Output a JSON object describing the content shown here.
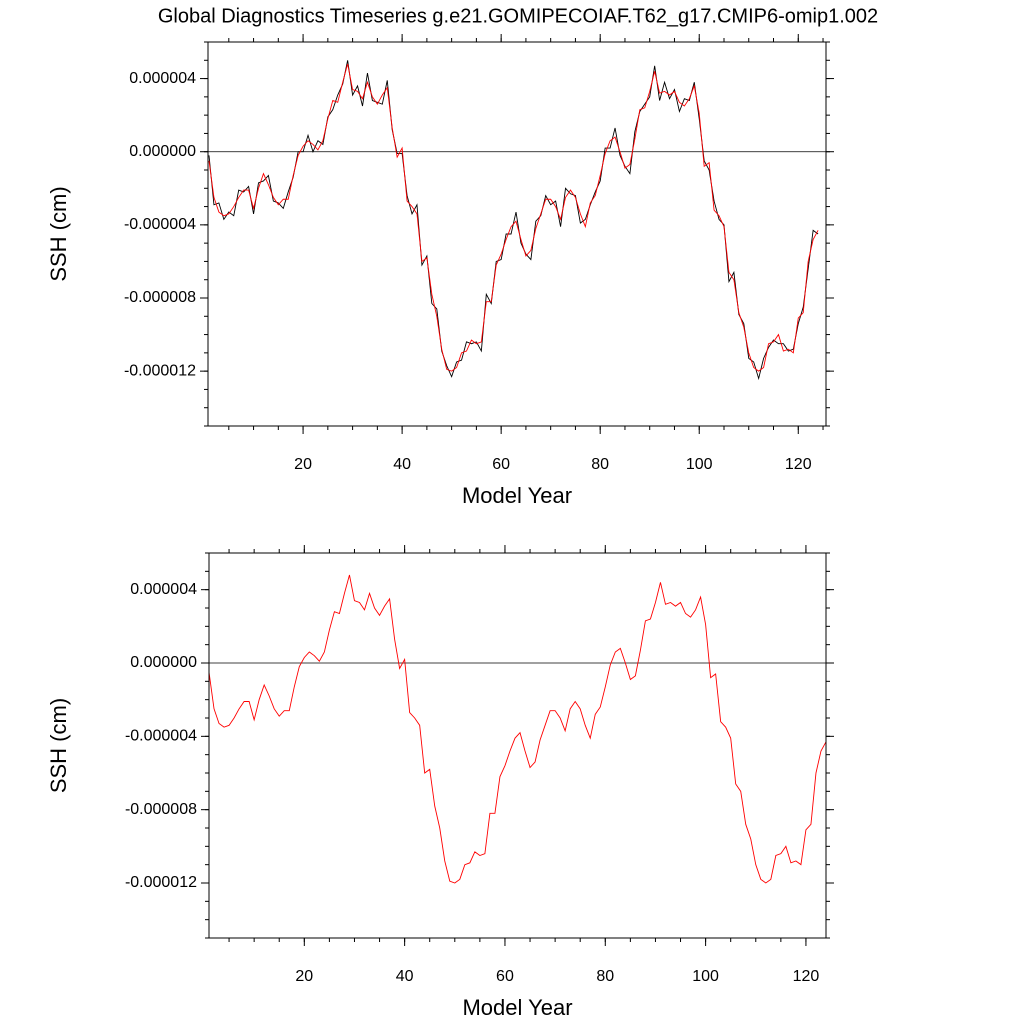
{
  "chart_data": [
    {
      "type": "line",
      "title": "Global Diagnostics Timeseries g.e21.GOMIPECOIAF.T62_g17.CMIP6-omip1.002",
      "x_label": "Model Year",
      "y_label": "SSH (cm)",
      "xlim": [
        0.8,
        125.6
      ],
      "xticks": [
        20,
        40,
        60,
        80,
        100,
        120
      ],
      "ylim": [
        -1.5e-05,
        6e-06
      ],
      "yticks": [
        {
          "value": 4e-06,
          "label": "0.000004"
        },
        {
          "value": 0,
          "label": "0.000000"
        },
        {
          "value": -4e-06,
          "label": "-0.000004"
        },
        {
          "value": -8e-06,
          "label": "-0.000008"
        },
        {
          "value": -1.2e-05,
          "label": "-0.000012"
        }
      ],
      "hline": 0,
      "x": [
        1,
        2,
        3,
        4,
        5,
        6,
        7,
        8,
        9,
        10,
        11,
        12,
        13,
        14,
        15,
        16,
        17,
        18,
        19,
        20,
        21,
        22,
        23,
        24,
        25,
        26,
        27,
        28,
        29,
        30,
        31,
        32,
        33,
        34,
        35,
        36,
        37,
        38,
        39,
        40,
        41,
        42,
        43,
        44,
        45,
        46,
        47,
        48,
        49,
        50,
        51,
        52,
        53,
        54,
        55,
        56,
        57,
        58,
        59,
        60,
        61,
        62,
        63,
        64,
        65,
        66,
        67,
        68,
        69,
        70,
        71,
        72,
        73,
        74,
        75,
        76,
        77,
        78,
        79,
        80,
        81,
        82,
        83,
        84,
        85,
        86,
        87,
        88,
        89,
        90,
        91,
        92,
        93,
        94,
        95,
        96,
        97,
        98,
        99,
        100,
        101,
        102,
        103,
        104,
        105,
        106,
        107,
        108,
        109,
        110,
        111,
        112,
        113,
        114,
        115,
        116,
        117,
        118,
        119,
        120,
        121,
        122,
        123,
        124
      ],
      "series": [
        {
          "color": "#000000",
          "values": [
            -2e-07,
            -2.9e-06,
            -2.8e-06,
            -3.7e-06,
            -3.3e-06,
            -3.5e-06,
            -2.1e-06,
            -2.2e-06,
            -1.9e-06,
            -3.4e-06,
            -1.7e-06,
            -1.6e-06,
            -1.3e-06,
            -2.7e-06,
            -2.8e-06,
            -3.1e-06,
            -2.2e-06,
            -1.4e-06,
            0,
            0,
            9e-07,
            0,
            6e-07,
            4e-07,
            1.9e-06,
            2.3e-06,
            3.1e-06,
            3.7e-06,
            5e-06,
            3.1e-06,
            3.6e-06,
            2.5e-06,
            4.3e-06,
            2.8e-06,
            2.7e-06,
            2.6e-06,
            3.9e-06,
            1.2e-06,
            -1e-07,
            -1e-07,
            -2.4e-06,
            -3.4e-06,
            -2.9e-06,
            -6.2e-06,
            -5.7e-06,
            -8.3e-06,
            -8.6e-06,
            -1.09e-05,
            -1.17e-05,
            -1.23e-05,
            -1.15e-05,
            -1.14e-05,
            -1.04e-05,
            -1.05e-05,
            -1.04e-05,
            -1.09e-05,
            -7.8e-06,
            -8.3e-06,
            -6e-06,
            -5.9e-06,
            -4.5e-06,
            -4.5e-06,
            -3.3e-06,
            -5e-06,
            -5.6e-06,
            -5.9e-06,
            -3.8e-06,
            -3.5e-06,
            -2.4e-06,
            -2.9e-06,
            -2.7e-06,
            -4.1e-06,
            -2e-06,
            -2.3e-06,
            -2.4e-06,
            -3.9e-06,
            -3.7e-06,
            -2.9e-06,
            -2.2e-06,
            -1.6e-06,
            2e-07,
            2e-07,
            1.3e-06,
            -2e-07,
            -8e-07,
            -1.2e-06,
            1.1e-06,
            2.2e-06,
            2.6e-06,
            3e-06,
            4.7e-06,
            2.8e-06,
            3.8e-06,
            2.9e-06,
            3.4e-06,
            2.2e-06,
            2.9e-06,
            2.8e-06,
            3.8e-06,
            1.8e-06,
            -5e-07,
            -1e-06,
            -2.7e-06,
            -3.7e-06,
            -4e-06,
            -7.1e-06,
            -6.6e-06,
            -8.9e-06,
            -9.4e-06,
            -1.13e-05,
            -1.15e-05,
            -1.24e-05,
            -1.13e-05,
            -1.07e-05,
            -1.03e-05,
            -1.05e-05,
            -1.05e-05,
            -1.09e-05,
            -1.08e-05,
            -9.4e-06,
            -8.5e-06,
            -6.4e-06,
            -4.3e-06,
            -4.5e-06
          ]
        },
        {
          "color": "#ff0000",
          "values": [
            -5e-07,
            -2.5e-06,
            -3.3e-06,
            -3.5e-06,
            -3.4e-06,
            -3e-06,
            -2.5e-06,
            -2.1e-06,
            -2.1e-06,
            -3.1e-06,
            -2e-06,
            -1.2e-06,
            -1.8e-06,
            -2.5e-06,
            -2.9e-06,
            -2.6e-06,
            -2.6e-06,
            -1.3e-06,
            -2e-07,
            3e-07,
            6e-07,
            4e-07,
            1e-07,
            6e-07,
            1.8e-06,
            2.8e-06,
            2.7e-06,
            3.8e-06,
            4.8e-06,
            3.4e-06,
            3.3e-06,
            2.9e-06,
            3.8e-06,
            3e-06,
            2.6e-06,
            3.1e-06,
            3.5e-06,
            1.3e-06,
            -3e-07,
            2e-07,
            -2.7e-06,
            -3e-06,
            -3.4e-06,
            -6e-06,
            -5.8e-06,
            -7.8e-06,
            -9e-06,
            -1.08e-05,
            -1.19e-05,
            -1.2e-05,
            -1.18e-05,
            -1.1e-05,
            -1.09e-05,
            -1.03e-05,
            -1.05e-05,
            -1.04e-05,
            -8.2e-06,
            -8.2e-06,
            -6.2e-06,
            -5.6e-06,
            -4.8e-06,
            -4.1e-06,
            -3.8e-06,
            -4.8e-06,
            -5.7e-06,
            -5.4e-06,
            -4.2e-06,
            -3.4e-06,
            -2.6e-06,
            -2.6e-06,
            -3e-06,
            -3.7e-06,
            -2.5e-06,
            -2.1e-06,
            -2.5e-06,
            -3.4e-06,
            -4.1e-06,
            -2.8e-06,
            -2.4e-06,
            -1.3e-06,
            -1e-07,
            6e-07,
            8e-07,
            0,
            -9e-07,
            -7e-07,
            7e-07,
            2.3e-06,
            2.4e-06,
            3.3e-06,
            4.4e-06,
            3.2e-06,
            3.3e-06,
            3.1e-06,
            3.3e-06,
            2.7e-06,
            2.5e-06,
            2.9e-06,
            3.6e-06,
            2.1e-06,
            -8e-07,
            -6e-07,
            -3.2e-06,
            -3.5e-06,
            -4.1e-06,
            -6.6e-06,
            -7e-06,
            -8.8e-06,
            -9.6e-06,
            -1.1e-05,
            -1.18e-05,
            -1.2e-05,
            -1.18e-05,
            -1.05e-05,
            -1.04e-05,
            -1e-05,
            -1.09e-05,
            -1.08e-05,
            -1.1e-05,
            -9.1e-06,
            -8.8e-06,
            -6e-06,
            -4.8e-06,
            -4.3e-06
          ]
        }
      ]
    },
    {
      "type": "line",
      "x_label": "Model Year",
      "y_label": "SSH (cm)",
      "xlim": [
        1,
        124
      ],
      "xticks": [
        20,
        40,
        60,
        80,
        100,
        120
      ],
      "ylim": [
        -1.5e-05,
        6e-06
      ],
      "yticks": [
        {
          "value": 4e-06,
          "label": "0.000004"
        },
        {
          "value": 0,
          "label": "0.000000"
        },
        {
          "value": -4e-06,
          "label": "-0.000004"
        },
        {
          "value": -8e-06,
          "label": "-0.000008"
        },
        {
          "value": -1.2e-05,
          "label": "-0.000012"
        }
      ],
      "hline": 0,
      "x": [
        1,
        2,
        3,
        4,
        5,
        6,
        7,
        8,
        9,
        10,
        11,
        12,
        13,
        14,
        15,
        16,
        17,
        18,
        19,
        20,
        21,
        22,
        23,
        24,
        25,
        26,
        27,
        28,
        29,
        30,
        31,
        32,
        33,
        34,
        35,
        36,
        37,
        38,
        39,
        40,
        41,
        42,
        43,
        44,
        45,
        46,
        47,
        48,
        49,
        50,
        51,
        52,
        53,
        54,
        55,
        56,
        57,
        58,
        59,
        60,
        61,
        62,
        63,
        64,
        65,
        66,
        67,
        68,
        69,
        70,
        71,
        72,
        73,
        74,
        75,
        76,
        77,
        78,
        79,
        80,
        81,
        82,
        83,
        84,
        85,
        86,
        87,
        88,
        89,
        90,
        91,
        92,
        93,
        94,
        95,
        96,
        97,
        98,
        99,
        100,
        101,
        102,
        103,
        104,
        105,
        106,
        107,
        108,
        109,
        110,
        111,
        112,
        113,
        114,
        115,
        116,
        117,
        118,
        119,
        120,
        121,
        122,
        123,
        124
      ],
      "series": [
        {
          "color": "#ff0000",
          "values": [
            -5e-07,
            -2.5e-06,
            -3.3e-06,
            -3.5e-06,
            -3.4e-06,
            -3e-06,
            -2.5e-06,
            -2.1e-06,
            -2.1e-06,
            -3.1e-06,
            -2e-06,
            -1.2e-06,
            -1.8e-06,
            -2.5e-06,
            -2.9e-06,
            -2.6e-06,
            -2.6e-06,
            -1.3e-06,
            -2e-07,
            3e-07,
            6e-07,
            4e-07,
            1e-07,
            6e-07,
            1.8e-06,
            2.8e-06,
            2.7e-06,
            3.8e-06,
            4.8e-06,
            3.4e-06,
            3.3e-06,
            2.9e-06,
            3.8e-06,
            3e-06,
            2.6e-06,
            3.1e-06,
            3.5e-06,
            1.3e-06,
            -3e-07,
            2e-07,
            -2.7e-06,
            -3e-06,
            -3.4e-06,
            -6e-06,
            -5.8e-06,
            -7.8e-06,
            -9e-06,
            -1.08e-05,
            -1.19e-05,
            -1.2e-05,
            -1.18e-05,
            -1.1e-05,
            -1.09e-05,
            -1.03e-05,
            -1.05e-05,
            -1.04e-05,
            -8.2e-06,
            -8.2e-06,
            -6.2e-06,
            -5.6e-06,
            -4.8e-06,
            -4.1e-06,
            -3.8e-06,
            -4.8e-06,
            -5.7e-06,
            -5.4e-06,
            -4.2e-06,
            -3.4e-06,
            -2.6e-06,
            -2.6e-06,
            -3e-06,
            -3.7e-06,
            -2.5e-06,
            -2.1e-06,
            -2.5e-06,
            -3.4e-06,
            -4.1e-06,
            -2.8e-06,
            -2.4e-06,
            -1.3e-06,
            -1e-07,
            6e-07,
            8e-07,
            0,
            -9e-07,
            -7e-07,
            7e-07,
            2.3e-06,
            2.4e-06,
            3.3e-06,
            4.4e-06,
            3.2e-06,
            3.3e-06,
            3.1e-06,
            3.3e-06,
            2.7e-06,
            2.5e-06,
            2.9e-06,
            3.6e-06,
            2.1e-06,
            -8e-07,
            -6e-07,
            -3.2e-06,
            -3.5e-06,
            -4.1e-06,
            -6.6e-06,
            -7e-06,
            -8.8e-06,
            -9.6e-06,
            -1.1e-05,
            -1.18e-05,
            -1.2e-05,
            -1.18e-05,
            -1.05e-05,
            -1.04e-05,
            -1e-05,
            -1.09e-05,
            -1.08e-05,
            -1.1e-05,
            -9.1e-06,
            -8.8e-06,
            -6e-06,
            -4.8e-06,
            -4.3e-06
          ]
        }
      ]
    }
  ]
}
